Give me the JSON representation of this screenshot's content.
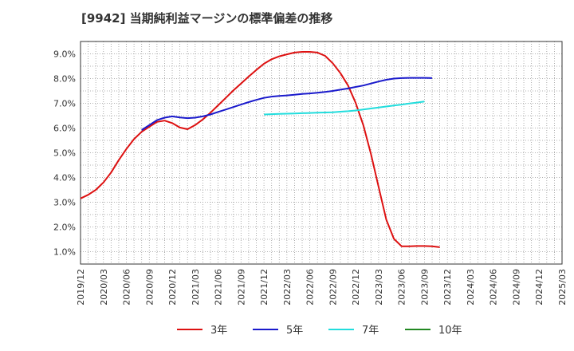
{
  "chart_data": {
    "type": "line",
    "title": "[9942]  当期純利益マージンの標準偏差の推移",
    "xlabel": "",
    "ylabel": "",
    "ylim": [
      0.5,
      9.5
    ],
    "yticks": [
      "1.0%",
      "2.0%",
      "3.0%",
      "4.0%",
      "5.0%",
      "6.0%",
      "7.0%",
      "8.0%",
      "9.0%"
    ],
    "ytick_values": [
      1,
      2,
      3,
      4,
      5,
      6,
      7,
      8,
      9
    ],
    "xticks": [
      "2019/12",
      "2020/03",
      "2020/06",
      "2020/09",
      "2020/12",
      "2021/03",
      "2021/06",
      "2021/09",
      "2021/12",
      "2022/03",
      "2022/06",
      "2022/09",
      "2022/12",
      "2023/03",
      "2023/06",
      "2023/09",
      "2023/12",
      "2024/03",
      "2024/06",
      "2024/09",
      "2024/12",
      "2025/03"
    ],
    "grid": true,
    "legend_position": "bottom",
    "series": [
      {
        "name": "3年",
        "color": "#dd1111",
        "points": [
          [
            0,
            3.15
          ],
          [
            1,
            3.3
          ],
          [
            2,
            3.5
          ],
          [
            3,
            3.8
          ],
          [
            4,
            4.2
          ],
          [
            5,
            4.7
          ],
          [
            6,
            5.15
          ],
          [
            7,
            5.55
          ],
          [
            8,
            5.85
          ],
          [
            9,
            6.05
          ],
          [
            10,
            6.25
          ],
          [
            11,
            6.3
          ],
          [
            12,
            6.2
          ],
          [
            13,
            6.02
          ],
          [
            14,
            5.95
          ],
          [
            15,
            6.12
          ],
          [
            16,
            6.35
          ],
          [
            17,
            6.62
          ],
          [
            18,
            6.92
          ],
          [
            19,
            7.22
          ],
          [
            20,
            7.52
          ],
          [
            21,
            7.8
          ],
          [
            22,
            8.08
          ],
          [
            23,
            8.35
          ],
          [
            24,
            8.6
          ],
          [
            25,
            8.78
          ],
          [
            26,
            8.9
          ],
          [
            27,
            8.98
          ],
          [
            28,
            9.05
          ],
          [
            29,
            9.08
          ],
          [
            30,
            9.08
          ],
          [
            31,
            9.05
          ],
          [
            32,
            8.92
          ],
          [
            33,
            8.62
          ],
          [
            34,
            8.22
          ],
          [
            35,
            7.72
          ],
          [
            36,
            7.02
          ],
          [
            37,
            6.12
          ],
          [
            38,
            4.95
          ],
          [
            39,
            3.62
          ],
          [
            40,
            2.3
          ],
          [
            41,
            1.52
          ],
          [
            42,
            1.22
          ],
          [
            43,
            1.22
          ],
          [
            44,
            1.23
          ],
          [
            45,
            1.23
          ],
          [
            46,
            1.22
          ],
          [
            47,
            1.18
          ]
        ]
      },
      {
        "name": "5年",
        "color": "#1a1acc",
        "points": [
          [
            8,
            5.92
          ],
          [
            9,
            6.12
          ],
          [
            10,
            6.32
          ],
          [
            11,
            6.42
          ],
          [
            12,
            6.47
          ],
          [
            13,
            6.43
          ],
          [
            14,
            6.4
          ],
          [
            15,
            6.42
          ],
          [
            16,
            6.47
          ],
          [
            17,
            6.55
          ],
          [
            18,
            6.65
          ],
          [
            19,
            6.75
          ],
          [
            20,
            6.85
          ],
          [
            21,
            6.95
          ],
          [
            22,
            7.05
          ],
          [
            23,
            7.14
          ],
          [
            24,
            7.22
          ],
          [
            25,
            7.27
          ],
          [
            26,
            7.3
          ],
          [
            27,
            7.32
          ],
          [
            28,
            7.35
          ],
          [
            29,
            7.38
          ],
          [
            30,
            7.4
          ],
          [
            31,
            7.43
          ],
          [
            32,
            7.46
          ],
          [
            33,
            7.5
          ],
          [
            34,
            7.55
          ],
          [
            35,
            7.6
          ],
          [
            36,
            7.66
          ],
          [
            37,
            7.72
          ],
          [
            38,
            7.8
          ],
          [
            39,
            7.88
          ],
          [
            40,
            7.95
          ],
          [
            41,
            8.0
          ],
          [
            42,
            8.02
          ],
          [
            43,
            8.03
          ],
          [
            44,
            8.03
          ],
          [
            45,
            8.03
          ],
          [
            46,
            8.02
          ]
        ]
      },
      {
        "name": "7年",
        "color": "#22dddd",
        "points": [
          [
            24,
            6.55
          ],
          [
            25,
            6.56
          ],
          [
            26,
            6.57
          ],
          [
            27,
            6.58
          ],
          [
            28,
            6.59
          ],
          [
            29,
            6.6
          ],
          [
            30,
            6.61
          ],
          [
            31,
            6.62
          ],
          [
            32,
            6.63
          ],
          [
            33,
            6.64
          ],
          [
            34,
            6.66
          ],
          [
            35,
            6.68
          ],
          [
            36,
            6.71
          ],
          [
            37,
            6.75
          ],
          [
            38,
            6.79
          ],
          [
            39,
            6.83
          ],
          [
            40,
            6.87
          ],
          [
            41,
            6.91
          ],
          [
            42,
            6.95
          ],
          [
            43,
            6.99
          ],
          [
            44,
            7.03
          ],
          [
            45,
            7.07
          ]
        ]
      },
      {
        "name": "10年",
        "color": "#228822",
        "points": []
      }
    ]
  }
}
